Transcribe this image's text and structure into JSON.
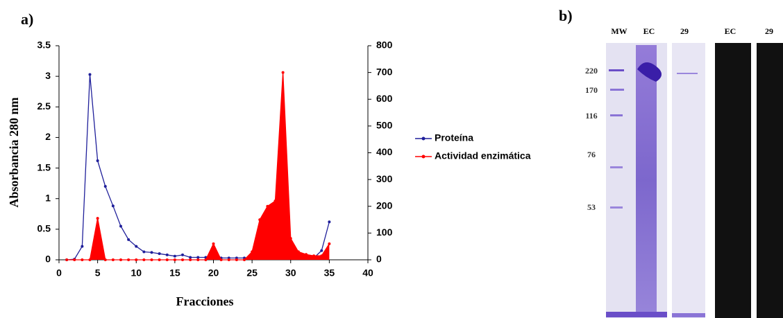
{
  "chart_data": {
    "type": "line",
    "label": "a)",
    "x_label": "Fracciones",
    "y_label": "Absorbancia 280 nm",
    "x": [
      1,
      2,
      3,
      4,
      5,
      6,
      7,
      8,
      9,
      10,
      11,
      12,
      13,
      14,
      15,
      16,
      17,
      18,
      19,
      20,
      21,
      22,
      23,
      24,
      25,
      26,
      27,
      28,
      29,
      30,
      31,
      32,
      33,
      34,
      35
    ],
    "series": [
      {
        "name": "Proteína",
        "color": "#1f1f9a",
        "axis": "y",
        "values": [
          0,
          0.01,
          0.22,
          3.03,
          1.62,
          1.2,
          0.88,
          0.55,
          0.33,
          0.22,
          0.13,
          0.12,
          0.1,
          0.08,
          0.06,
          0.08,
          0.04,
          0.04,
          0.04,
          0.05,
          0.03,
          0.03,
          0.03,
          0.03,
          0.04,
          0.05,
          0.06,
          0.08,
          0.13,
          0.08,
          0.05,
          0.04,
          0.03,
          0.15,
          0.62
        ]
      },
      {
        "name": "Actividad enzimática",
        "color": "#ff0000",
        "axis": "y2",
        "fill": true,
        "values": [
          0,
          0,
          0,
          0,
          155,
          0,
          0,
          0,
          0,
          0,
          0,
          0,
          0,
          0,
          0,
          0,
          0,
          0,
          0,
          60,
          0,
          0,
          0,
          0,
          30,
          150,
          200,
          220,
          700,
          80,
          30,
          20,
          15,
          15,
          60
        ]
      }
    ],
    "xlim": [
      0,
      40
    ],
    "xticks": [
      0,
      5,
      10,
      15,
      20,
      25,
      30,
      35,
      40
    ],
    "ylim": [
      0,
      3.5
    ],
    "yticks": [
      0,
      0.5,
      1,
      1.5,
      2,
      2.5,
      3,
      3.5
    ],
    "y2lim": [
      0,
      800
    ],
    "y2ticks": [
      0,
      100,
      200,
      300,
      400,
      500,
      600,
      700,
      800
    ],
    "legend": "right"
  },
  "gel": {
    "label": "b)",
    "lanes": [
      "MW",
      "EC",
      "29",
      "EC",
      "29"
    ],
    "markers": [
      "220",
      "170",
      "116",
      "76",
      "53"
    ]
  }
}
